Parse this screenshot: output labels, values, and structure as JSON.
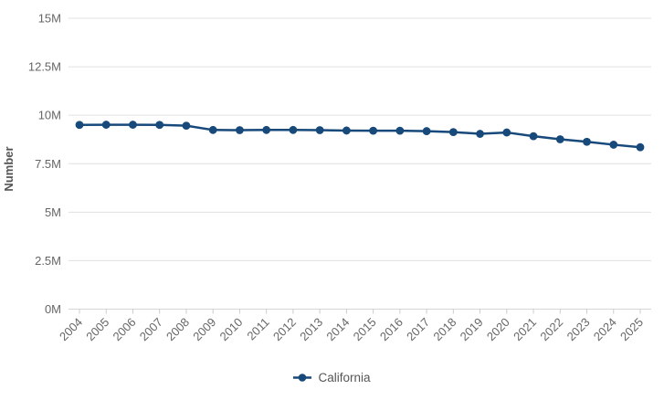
{
  "chart_data": {
    "type": "line",
    "title": "",
    "xlabel": "",
    "ylabel": "Number",
    "unit": "millions",
    "grid": "horizontal",
    "legend_position": "bottom-center",
    "marker": "circle",
    "ylim_millions": [
      0,
      15
    ],
    "y_ticks": [
      {
        "value": 0,
        "label": "0M"
      },
      {
        "value": 2.5,
        "label": "2.5M"
      },
      {
        "value": 5,
        "label": "5M"
      },
      {
        "value": 7.5,
        "label": "7.5M"
      },
      {
        "value": 10,
        "label": "10M"
      },
      {
        "value": 12.5,
        "label": "12.5M"
      },
      {
        "value": 15,
        "label": "15M"
      }
    ],
    "categories": [
      "2004",
      "2005",
      "2006",
      "2007",
      "2008",
      "2009",
      "2010",
      "2011",
      "2012",
      "2013",
      "2014",
      "2015",
      "2016",
      "2017",
      "2018",
      "2019",
      "2020",
      "2021",
      "2022",
      "2023",
      "2024",
      "2025"
    ],
    "series": [
      {
        "name": "California",
        "color": "#17497b",
        "values_millions": [
          9.5,
          9.51,
          9.51,
          9.5,
          9.46,
          9.24,
          9.23,
          9.24,
          9.24,
          9.23,
          9.21,
          9.2,
          9.2,
          9.18,
          9.13,
          9.04,
          9.11,
          8.92,
          8.76,
          8.63,
          8.48,
          8.35
        ]
      }
    ]
  },
  "colors": {
    "series": "#17497b",
    "gridline": "#e0e0e0",
    "axis_line": "#d6d6d6",
    "tick_mark": "#cccccc",
    "axis_text": "#666666",
    "axis_title_text": "#555555",
    "background": "#ffffff"
  }
}
